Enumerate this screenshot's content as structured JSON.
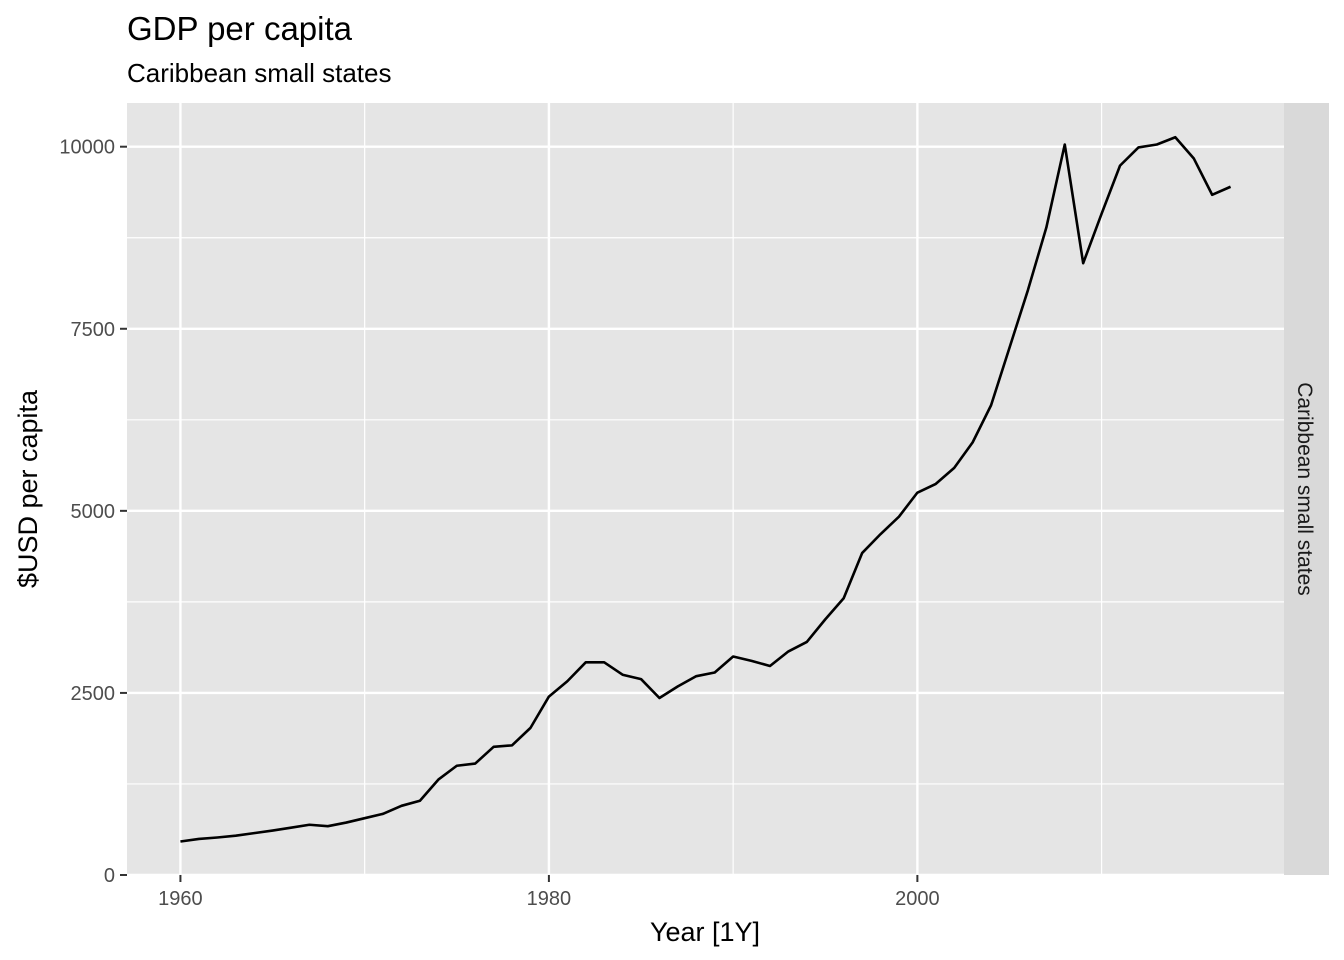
{
  "chart_data": {
    "type": "line",
    "title": "GDP per capita",
    "subtitle": "Caribbean small states",
    "xlabel": "Year [1Y]",
    "ylabel": "$USD per capita",
    "facet_label": "Caribbean small states",
    "xlim": [
      1957.1,
      2019.9
    ],
    "ylim": [
      0,
      10600
    ],
    "x_ticks": [
      1960,
      1980,
      2000
    ],
    "x_tick_labels": [
      "1960",
      "1980",
      "2000"
    ],
    "x_minor_ticks": [
      1970,
      1990,
      2010
    ],
    "y_ticks": [
      0,
      2500,
      5000,
      7500,
      10000
    ],
    "y_tick_labels": [
      "0",
      "2500",
      "5000",
      "7500",
      "10000"
    ],
    "y_minor_ticks": [
      1250,
      3750,
      6250,
      8750
    ],
    "grid": true,
    "colors": {
      "panel": "#e5e5e5",
      "strip": "#d9d9d9",
      "grid": "#ffffff",
      "line": "#000000"
    },
    "series": [
      {
        "x": [
          1960,
          1961,
          1962,
          1963,
          1964,
          1965,
          1966,
          1967,
          1968,
          1969,
          1970,
          1971,
          1972,
          1973,
          1974,
          1975,
          1976,
          1977,
          1978,
          1979,
          1980,
          1981,
          1982,
          1983,
          1984,
          1985,
          1986,
          1987,
          1988,
          1989,
          1990,
          1991,
          1992,
          1993,
          1994,
          1995,
          1996,
          1997,
          1998,
          1999,
          2000,
          2001,
          2002,
          2003,
          2004,
          2005,
          2006,
          2007,
          2008,
          2009,
          2010,
          2011,
          2012,
          2013,
          2014,
          2015,
          2016,
          2017
        ],
        "values": [
          460,
          495,
          515,
          540,
          575,
          610,
          650,
          690,
          670,
          720,
          780,
          840,
          950,
          1020,
          1310,
          1500,
          1530,
          1760,
          1780,
          2020,
          2450,
          2660,
          2920,
          2920,
          2750,
          2690,
          2430,
          2590,
          2730,
          2780,
          3000,
          2940,
          2870,
          3070,
          3200,
          3510,
          3800,
          4420,
          4680,
          4920,
          5250,
          5370,
          5590,
          5940,
          6450,
          7240,
          8030,
          8890,
          10030,
          8400,
          9080,
          9740,
          9990,
          10030,
          10130,
          9840,
          9340,
          9450
        ]
      }
    ]
  }
}
